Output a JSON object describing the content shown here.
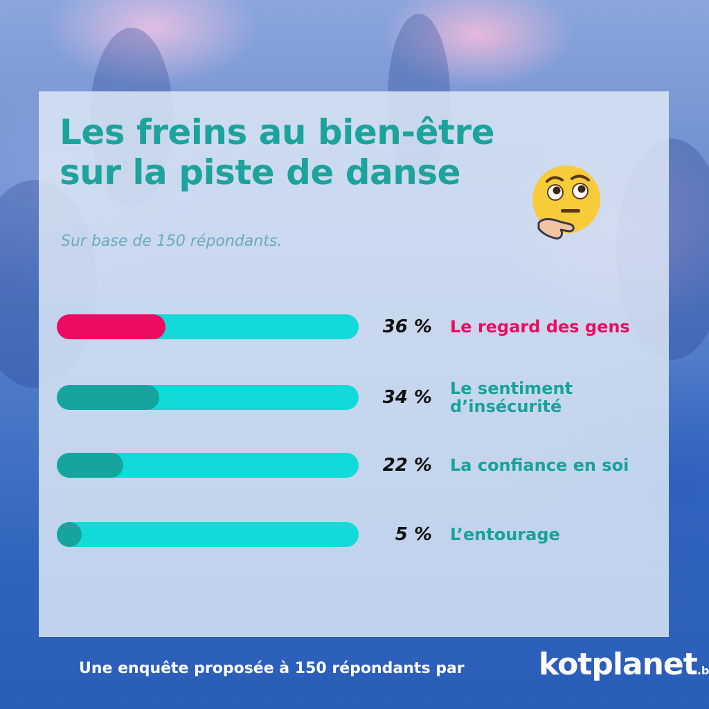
{
  "title_line1": "Les freins au bien-être",
  "title_line2": "sur la piste de danse",
  "subtitle": "Sur base de 150 répondants.",
  "emoji_icon": "thinking-face-icon",
  "footer": {
    "text": "Une enquête proposée à 150 répondants par",
    "logo_main": "kotplanet",
    "logo_suffix": ".be"
  },
  "colors": {
    "title": "#1ba39c",
    "track": "#12dad8",
    "fill_highlight": "#ee0a60",
    "fill_default": "#15a49e",
    "label_highlight": "#ee0a60",
    "label_default": "#16a39c"
  },
  "chart_data": {
    "type": "bar",
    "orientation": "horizontal",
    "categories": [
      [
        "Le regard des gens"
      ],
      [
        "Le sentiment",
        "d’insécurité"
      ],
      [
        "La confiance en soi"
      ],
      [
        "L’entourage"
      ]
    ],
    "values": [
      36,
      34,
      22,
      5
    ],
    "value_labels": [
      "36 %",
      "34 %",
      "22 %",
      "5 %"
    ],
    "highlight_index": 0,
    "xlim": [
      0,
      100
    ]
  }
}
